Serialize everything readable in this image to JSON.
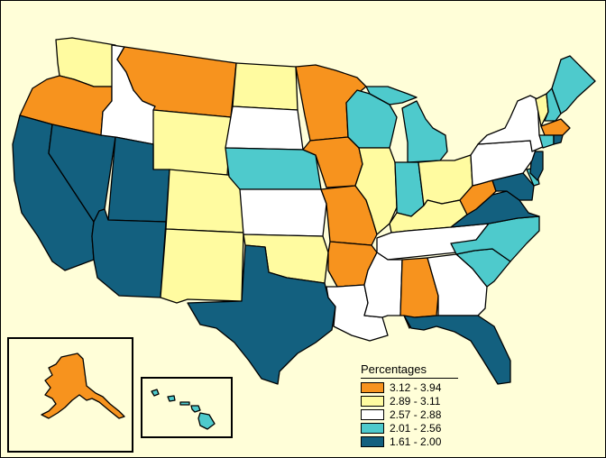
{
  "legend": {
    "title": "Percentages",
    "classes": [
      {
        "range": "3.12 - 3.94",
        "color": "#f7931e"
      },
      {
        "range": "2.89 - 3.11",
        "color": "#fffba0"
      },
      {
        "range": "2.57 - 2.88",
        "color": "#ffffff"
      },
      {
        "range": "2.01 - 2.56",
        "color": "#4ecacc"
      },
      {
        "range": "1.61 - 2.00",
        "color": "#13607f"
      }
    ]
  },
  "states": {
    "WA": 1,
    "OR": 0,
    "CA": 4,
    "NV": 4,
    "ID": 2,
    "MT": 0,
    "WY": 1,
    "UT": 4,
    "AZ": 4,
    "CO": 1,
    "NM": 1,
    "ND": 1,
    "SD": 2,
    "NE": 3,
    "KS": 2,
    "OK": 1,
    "TX": 4,
    "MN": 0,
    "IA": 0,
    "MO": 0,
    "AR": 0,
    "LA": 2,
    "WI": 3,
    "IL": 1,
    "MI": 3,
    "IN": 3,
    "OH": 1,
    "KY": 1,
    "TN": 2,
    "MS": 2,
    "AL": 0,
    "GA": 2,
    "FL": 4,
    "SC": 3,
    "NC": 3,
    "VA": 4,
    "WV": 0,
    "MD": 4,
    "DE": 3,
    "NJ": 4,
    "PA": 2,
    "NY": 2,
    "VT": 1,
    "NH": 3,
    "ME": 3,
    "MA": 0,
    "CT": 3,
    "RI": 4,
    "AK": 0,
    "HI": 3
  }
}
